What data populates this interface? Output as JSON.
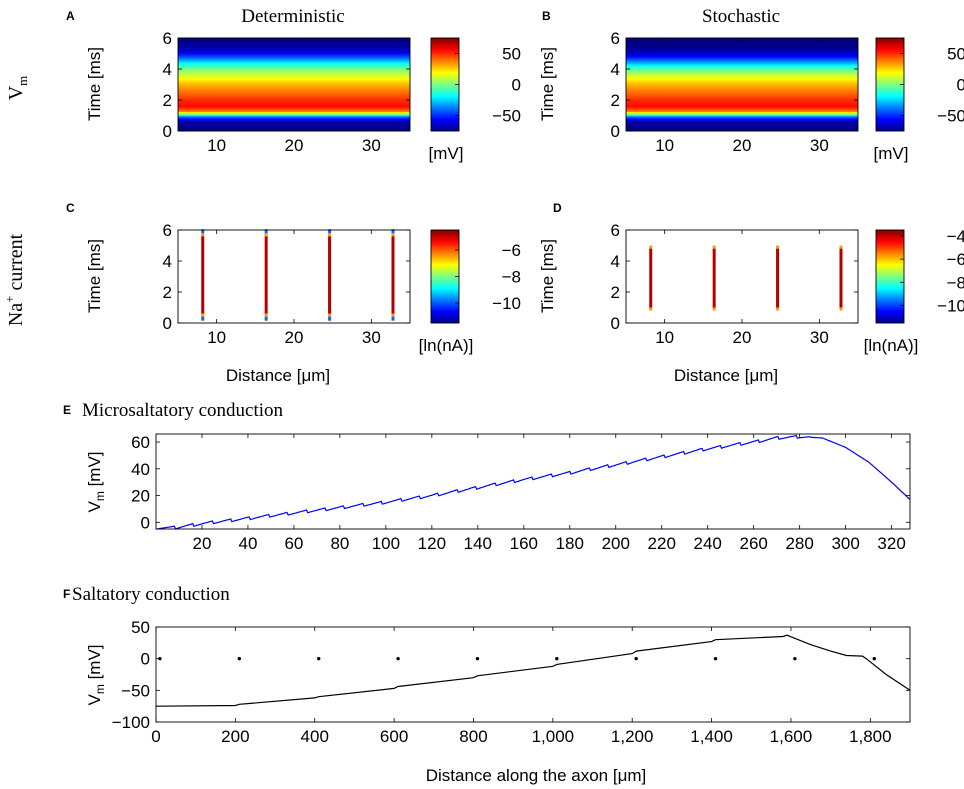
{
  "figure": {
    "row_labels": {
      "vm": {
        "main": "V",
        "sub": "m"
      },
      "na": {
        "main": "Na",
        "sup": "+",
        "rest": " current"
      }
    }
  },
  "chart_data": [
    {
      "id": "A",
      "type": "heatmap",
      "panel_letter": "A",
      "title": "Deterministic",
      "ylabel": {
        "main": "Time [ms]"
      },
      "xlabel": "",
      "xlim": [
        5,
        35
      ],
      "ylim": [
        0,
        6
      ],
      "xticks": [
        10,
        20,
        30
      ],
      "yticks": [
        0,
        2,
        4,
        6
      ],
      "colorbar": {
        "ticks": [
          "50",
          "0",
          "−50"
        ],
        "tick_values": [
          50,
          0,
          -50
        ],
        "range": [
          -75,
          75
        ],
        "unit": "[mV]"
      },
      "colormap": "jet",
      "time_profile_mV": [
        [
          0,
          -75
        ],
        [
          0.6,
          -70
        ],
        [
          0.9,
          -45
        ],
        [
          1.1,
          0
        ],
        [
          1.3,
          40
        ],
        [
          1.6,
          55
        ],
        [
          2.0,
          50
        ],
        [
          2.5,
          40
        ],
        [
          3.0,
          30
        ],
        [
          3.5,
          15
        ],
        [
          4.0,
          0
        ],
        [
          4.4,
          -20
        ],
        [
          4.8,
          -45
        ],
        [
          5.2,
          -65
        ],
        [
          5.6,
          -72
        ],
        [
          6,
          -75
        ]
      ]
    },
    {
      "id": "B",
      "type": "heatmap",
      "panel_letter": "B",
      "title": "Stochastic",
      "ylabel": {
        "main": "Time [ms]"
      },
      "xlabel": "",
      "xlim": [
        5,
        35
      ],
      "ylim": [
        0,
        6
      ],
      "xticks": [
        10,
        20,
        30
      ],
      "yticks": [
        0,
        2,
        4,
        6
      ],
      "colorbar": {
        "ticks": [
          "50",
          "0",
          "−50"
        ],
        "tick_values": [
          50,
          0,
          -50
        ],
        "range": [
          -75,
          75
        ],
        "unit": "[mV]"
      },
      "colormap": "jet",
      "time_profile_mV": [
        [
          0,
          -75
        ],
        [
          0.6,
          -70
        ],
        [
          0.9,
          -45
        ],
        [
          1.1,
          0
        ],
        [
          1.3,
          40
        ],
        [
          1.6,
          55
        ],
        [
          2.0,
          50
        ],
        [
          2.5,
          40
        ],
        [
          3.0,
          30
        ],
        [
          3.5,
          15
        ],
        [
          4.0,
          -5
        ],
        [
          4.4,
          -30
        ],
        [
          4.8,
          -55
        ],
        [
          5.2,
          -70
        ],
        [
          5.6,
          -75
        ],
        [
          6,
          -75
        ]
      ]
    },
    {
      "id": "C",
      "type": "heatmap",
      "panel_letter": "C",
      "title": "",
      "ylabel": {
        "main": "Time [ms]"
      },
      "xlabel": "Distance [μm]",
      "xlim": [
        5,
        35
      ],
      "ylim": [
        0,
        6
      ],
      "xticks": [
        10,
        20,
        30
      ],
      "yticks": [
        0,
        2,
        4,
        6
      ],
      "colorbar": {
        "ticks": [
          "−6",
          "−8",
          "−10"
        ],
        "tick_values": [
          -6,
          -8,
          -10
        ],
        "range": [
          -11.5,
          -4.5
        ],
        "unit": "[ln(nA)]"
      },
      "colormap": "jet",
      "stripes_x": [
        8.2,
        16.4,
        24.6,
        32.8
      ],
      "stripe_t": [
        0.6,
        5.6
      ]
    },
    {
      "id": "D",
      "type": "heatmap",
      "panel_letter": "D",
      "title": "",
      "ylabel": {
        "main": "Time [ms]"
      },
      "xlabel": "Distance [μm]",
      "xlim": [
        5,
        35
      ],
      "ylim": [
        0,
        6
      ],
      "xticks": [
        10,
        20,
        30
      ],
      "yticks": [
        0,
        2,
        4,
        6
      ],
      "colorbar": {
        "ticks": [
          "−4",
          "−6",
          "−8",
          "−10"
        ],
        "tick_values": [
          -4,
          -6,
          -8,
          -10
        ],
        "range": [
          -11.5,
          -3.5
        ],
        "unit": "[ln(nA)]"
      },
      "colormap": "jet",
      "stripes_x": [
        8.2,
        16.4,
        24.6,
        32.8
      ],
      "stripe_t": [
        1.0,
        4.8
      ]
    },
    {
      "id": "E",
      "type": "line",
      "panel_letter": "E",
      "title": "Microsaltatory conduction",
      "ylabel": {
        "main": "V",
        "sub": "m",
        "rest": " [mV]"
      },
      "xlabel": "",
      "xlim": [
        0,
        328
      ],
      "ylim": [
        -5,
        66
      ],
      "xticks": [
        20,
        40,
        60,
        80,
        100,
        120,
        140,
        160,
        180,
        200,
        220,
        240,
        260,
        280,
        300,
        320
      ],
      "yticks": [
        0,
        20,
        40,
        60
      ],
      "xtick_labels": [
        "20",
        "40",
        "60",
        "80",
        "100",
        "120",
        "140",
        "160",
        "180",
        "200",
        "220",
        "240",
        "260",
        "280",
        "300",
        "320"
      ],
      "ytick_labels": [
        "0",
        "20",
        "40",
        "60"
      ],
      "color": "#0000ff",
      "x": [
        0,
        8,
        20,
        40,
        60,
        80,
        100,
        120,
        140,
        160,
        180,
        200,
        220,
        240,
        260,
        270,
        280,
        290,
        300,
        310,
        320,
        328
      ],
      "y": [
        -4,
        -4,
        -1,
        3,
        7,
        11,
        15,
        20,
        26,
        32,
        37,
        43,
        49,
        55,
        60,
        63,
        64,
        63,
        56,
        45,
        30,
        17
      ],
      "node_spacing": 8.2
    },
    {
      "id": "F",
      "type": "line",
      "panel_letter": "F",
      "title": "Saltatory conduction",
      "ylabel": {
        "main": "V",
        "sub": "m",
        "rest": " [mV]"
      },
      "xlabel": "Distance along the axon [μm]",
      "xlim": [
        0,
        1900
      ],
      "ylim": [
        -100,
        50
      ],
      "xticks": [
        0,
        200,
        400,
        600,
        800,
        1000,
        1200,
        1400,
        1600,
        1800
      ],
      "yticks": [
        -100,
        -50,
        0,
        50
      ],
      "xtick_labels": [
        "0",
        "200",
        "400",
        "600",
        "800",
        "1,000",
        "1,200",
        "1,400",
        "1,600",
        "1,800"
      ],
      "ytick_labels": [
        "−100",
        "−50",
        "0",
        "50"
      ],
      "color": "#000000",
      "x": [
        0,
        200,
        210,
        400,
        410,
        600,
        610,
        800,
        810,
        1000,
        1010,
        1200,
        1210,
        1400,
        1410,
        1580,
        1590,
        1650,
        1700,
        1740,
        1780,
        1790,
        1840,
        1900
      ],
      "y": [
        -75,
        -74,
        -72,
        -62,
        -60,
        -47,
        -44,
        -30,
        -27,
        -12,
        -9,
        8,
        12,
        27,
        30,
        35,
        37,
        22,
        12,
        5,
        4,
        0,
        -25,
        -50
      ],
      "node_markers": {
        "x": [
          10,
          210,
          410,
          610,
          810,
          1010,
          1210,
          1410,
          1610,
          1810
        ],
        "y": 0
      }
    }
  ]
}
